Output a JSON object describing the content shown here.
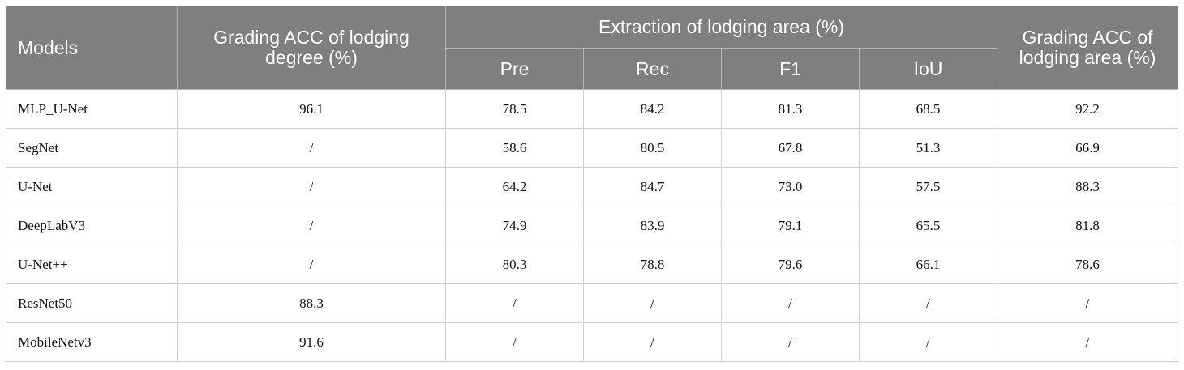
{
  "table": {
    "headers": {
      "models": "Models",
      "degree_acc": "Grading ACC of lodging degree (%)",
      "extraction": "Extraction of lodging area (%)",
      "area_acc": "Grading ACC of lodging area (%)",
      "sub": [
        "Pre",
        "Rec",
        "F1",
        "IoU"
      ]
    },
    "rows": [
      [
        "MLP_U-Net",
        "96.1",
        "78.5",
        "84.2",
        "81.3",
        "68.5",
        "92.2"
      ],
      [
        "SegNet",
        "/",
        "58.6",
        "80.5",
        "67.8",
        "51.3",
        "66.9"
      ],
      [
        "U-Net",
        "/",
        "64.2",
        "84.7",
        "73.0",
        "57.5",
        "88.3"
      ],
      [
        "DeepLabV3",
        "/",
        "74.9",
        "83.9",
        "79.1",
        "65.5",
        "81.8"
      ],
      [
        "U-Net++",
        "/",
        "80.3",
        "78.8",
        "79.6",
        "66.1",
        "78.6"
      ],
      [
        "ResNet50",
        "88.3",
        "/",
        "/",
        "/",
        "/",
        "/"
      ],
      [
        "MobileNetv3",
        "91.6",
        "/",
        "/",
        "/",
        "/",
        "/"
      ]
    ]
  }
}
